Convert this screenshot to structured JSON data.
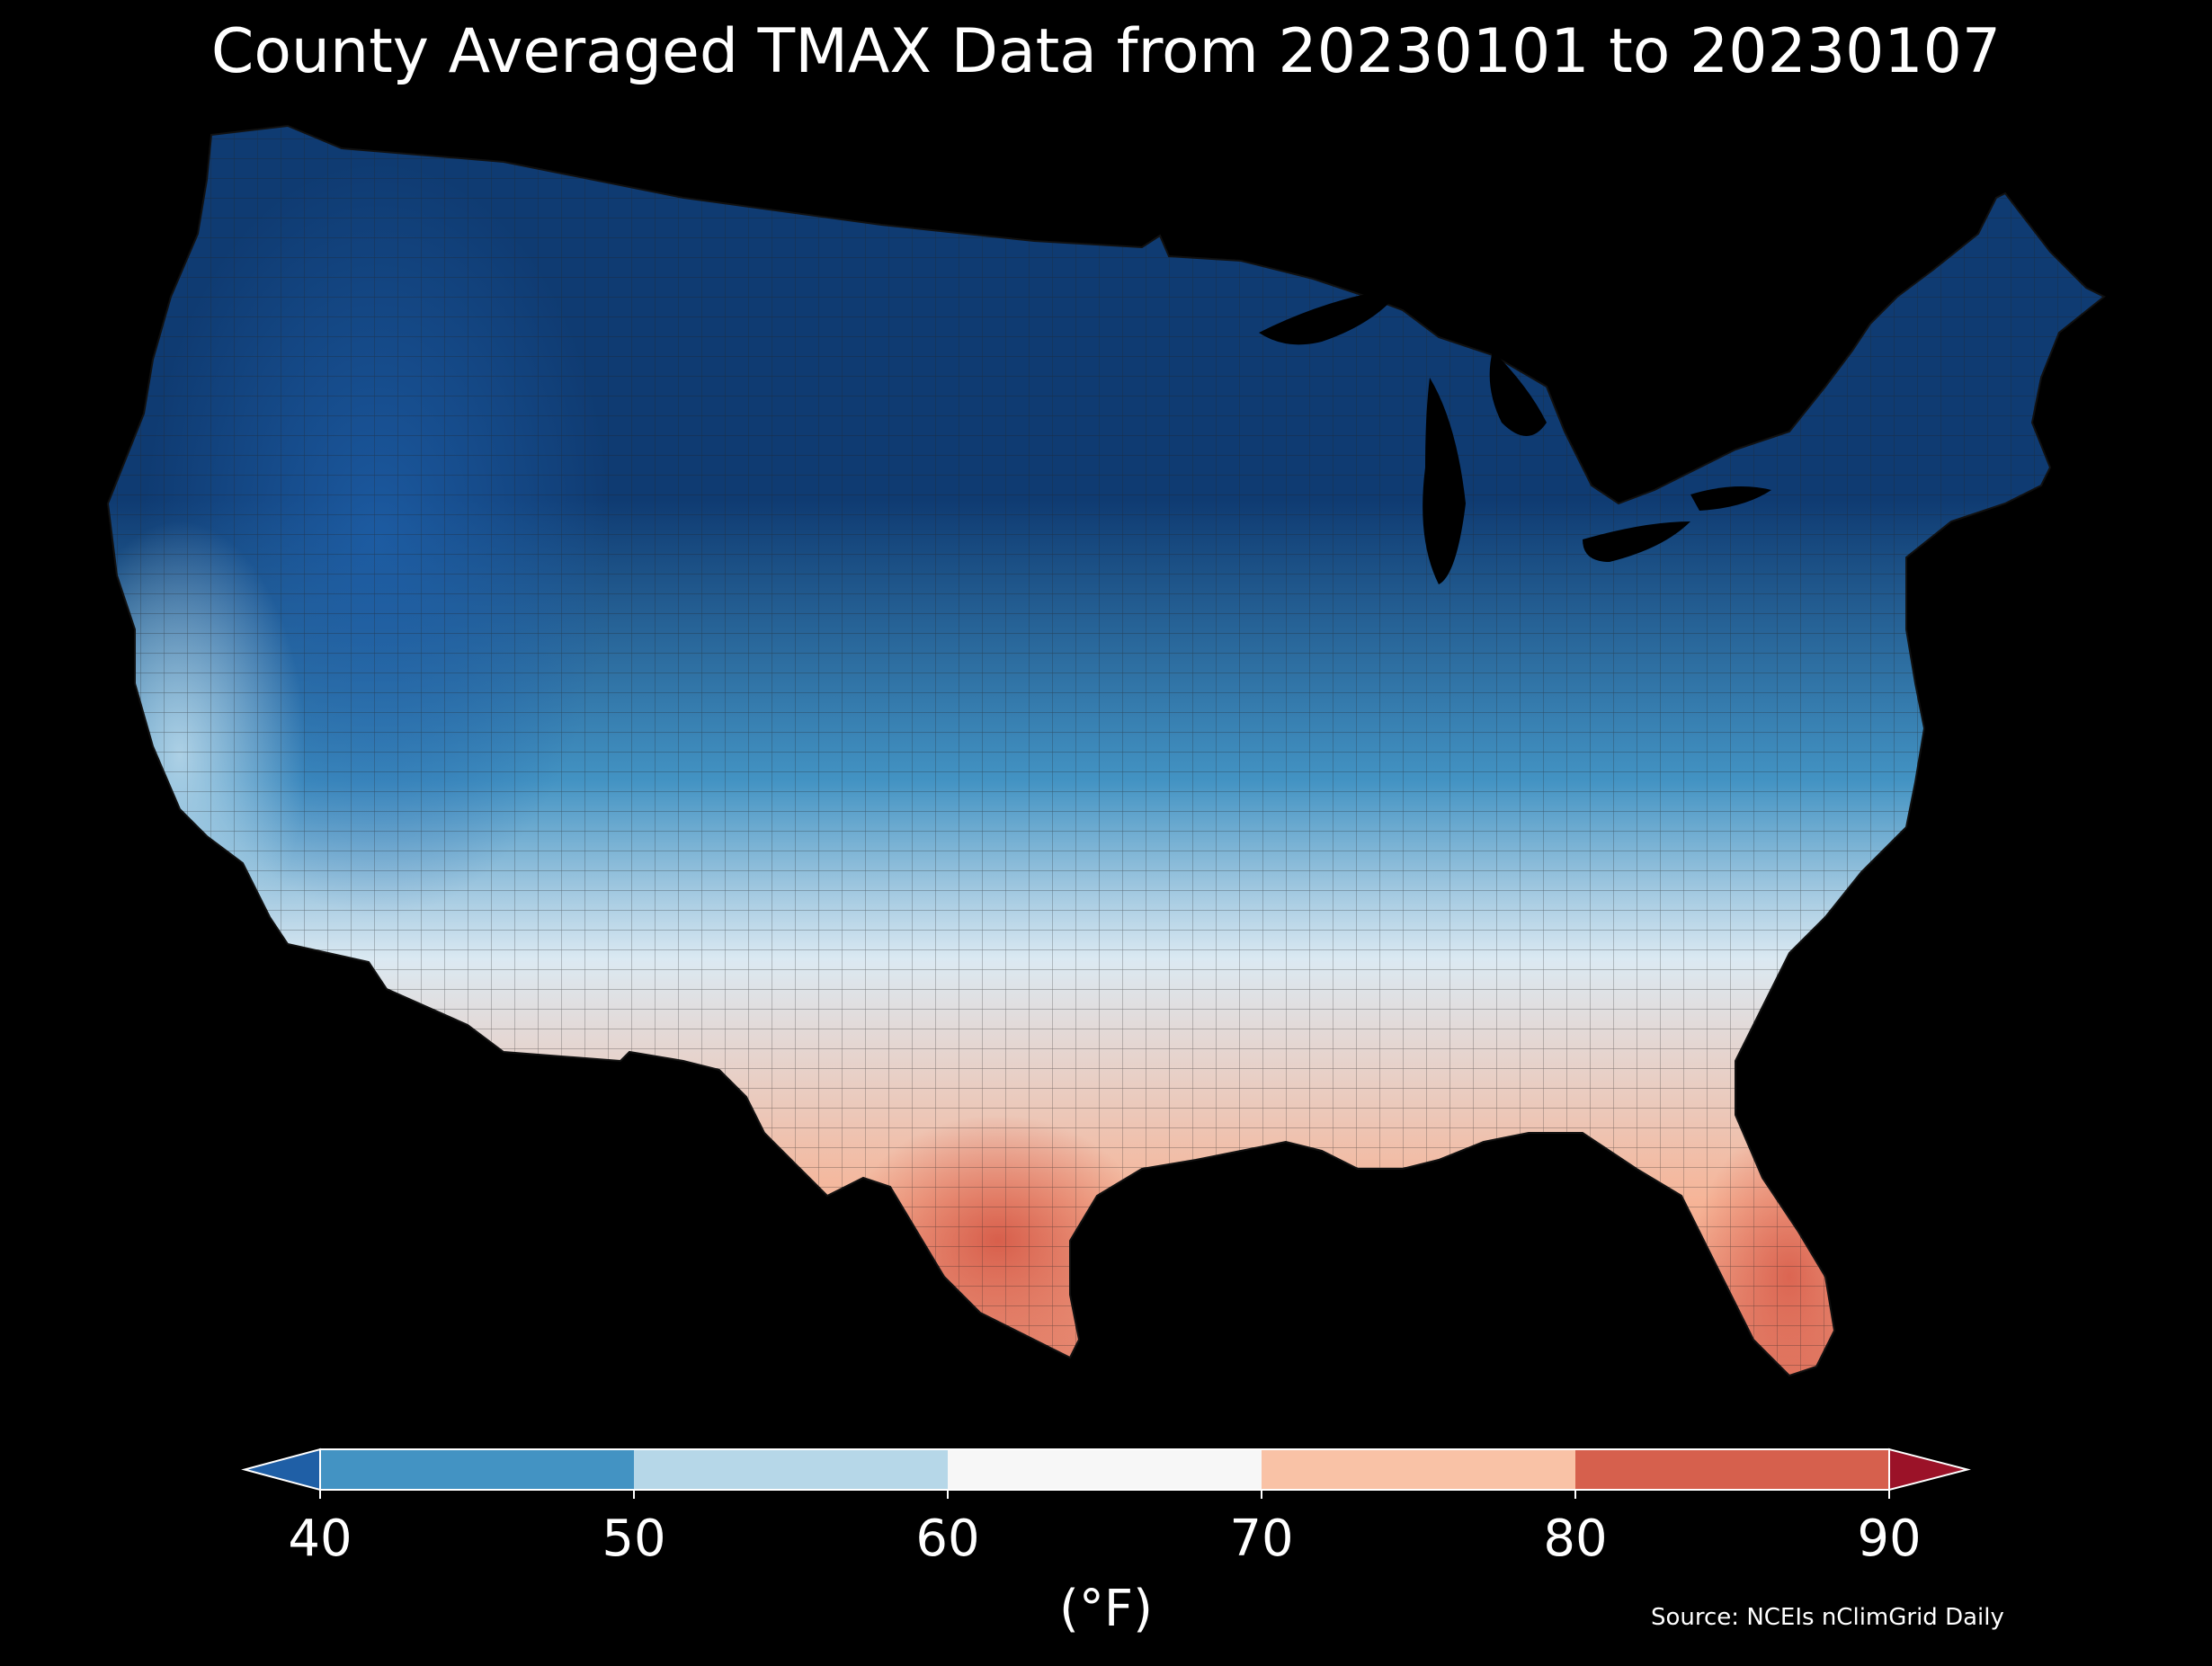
{
  "title": "County Averaged TMAX Data from 20230101 to 20230107",
  "source": "Source: NCEIs nClimGrid Daily",
  "colorbar": {
    "label": "(°F)",
    "ticks": [
      "40",
      "50",
      "60",
      "70",
      "80",
      "90"
    ],
    "bins": [
      {
        "from": 40,
        "to": 50,
        "color": "#4393c3"
      },
      {
        "from": 50,
        "to": 60,
        "color": "#b6d7e8"
      },
      {
        "from": 60,
        "to": 70,
        "color": "#f7f7f7"
      },
      {
        "from": 70,
        "to": 80,
        "color": "#f9c2a6"
      },
      {
        "from": 80,
        "to": 90,
        "color": "#d6604d"
      }
    ],
    "under_color": "#1f5fa6",
    "over_color": "#9b1228"
  },
  "map": {
    "land_colors": {
      "north": "#0f3b72",
      "mid": "#4393c3",
      "central": "#dbe9f2",
      "south": "#f7f7f7",
      "gulf": "#f6b497",
      "hot": "#e07862"
    },
    "water_color": "#000000"
  }
}
